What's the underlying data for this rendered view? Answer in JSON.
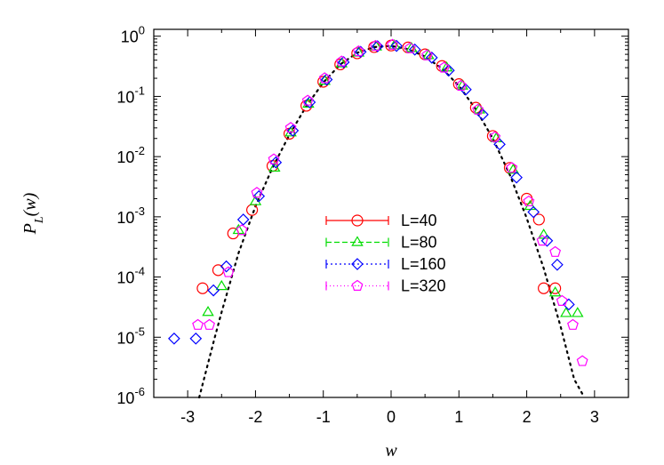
{
  "chart_data": {
    "type": "scatter",
    "title": "",
    "xlabel": "w",
    "ylabel_main": "P",
    "ylabel_sub": "L",
    "ylabel_tail": "(w)",
    "x_scale": "linear",
    "y_scale": "log",
    "xlim": [
      -3.5,
      3.5
    ],
    "ylim": [
      1e-06,
      1.3
    ],
    "x_ticks": [
      -3,
      -2,
      -1,
      0,
      1,
      2,
      3
    ],
    "x_tick_labels": [
      "-3",
      "-2",
      "-1",
      "0",
      "1",
      "2",
      "3"
    ],
    "y_ticks": [
      {
        "value": 1e-06,
        "base": "10",
        "exp": "-6"
      },
      {
        "value": 1e-05,
        "base": "10",
        "exp": "-5"
      },
      {
        "value": 0.0001,
        "base": "10",
        "exp": "-4"
      },
      {
        "value": 0.001,
        "base": "10",
        "exp": "-3"
      },
      {
        "value": 0.01,
        "base": "10",
        "exp": "-2"
      },
      {
        "value": 0.1,
        "base": "10",
        "exp": "-1"
      },
      {
        "value": 1,
        "base": "10",
        "exp": "0"
      }
    ],
    "legend_position": "center",
    "grid": false,
    "series": [
      {
        "name": "L=40",
        "marker": "circle",
        "color": "#ff0000",
        "points": [
          [
            -2.78,
            6.5e-05
          ],
          [
            -2.55,
            0.00013
          ],
          [
            -2.33,
            0.00053
          ],
          [
            -2.05,
            0.0013
          ],
          [
            -1.75,
            0.007
          ],
          [
            -1.5,
            0.024
          ],
          [
            -1.25,
            0.07
          ],
          [
            -1.0,
            0.175
          ],
          [
            -0.75,
            0.34
          ],
          [
            -0.5,
            0.52
          ],
          [
            -0.25,
            0.66
          ],
          [
            0.0,
            0.7
          ],
          [
            0.25,
            0.65
          ],
          [
            0.5,
            0.5
          ],
          [
            0.75,
            0.32
          ],
          [
            1.0,
            0.16
          ],
          [
            1.25,
            0.065
          ],
          [
            1.5,
            0.022
          ],
          [
            1.75,
            0.0065
          ],
          [
            2.0,
            0.002
          ],
          [
            2.18,
            0.0009
          ],
          [
            2.25,
            6.5e-05
          ],
          [
            2.42,
            6.5e-05
          ]
        ]
      },
      {
        "name": "L=80",
        "marker": "triangle",
        "color": "#00dd00",
        "points": [
          [
            -2.7,
            2.6e-05
          ],
          [
            -2.5,
            7e-05
          ],
          [
            -2.25,
            0.0006
          ],
          [
            -2.0,
            0.0018
          ],
          [
            -1.72,
            0.0065
          ],
          [
            -1.48,
            0.025
          ],
          [
            -1.22,
            0.075
          ],
          [
            -0.98,
            0.18
          ],
          [
            -0.73,
            0.35
          ],
          [
            -0.48,
            0.53
          ],
          [
            -0.22,
            0.67
          ],
          [
            0.05,
            0.7
          ],
          [
            0.3,
            0.63
          ],
          [
            0.55,
            0.48
          ],
          [
            0.82,
            0.3
          ],
          [
            1.05,
            0.15
          ],
          [
            1.3,
            0.06
          ],
          [
            1.55,
            0.02
          ],
          [
            1.8,
            0.006
          ],
          [
            2.05,
            0.0015
          ],
          [
            2.25,
            0.0005
          ],
          [
            2.42,
            5.5e-05
          ],
          [
            2.58,
            2.5e-05
          ],
          [
            2.75,
            2.5e-05
          ]
        ]
      },
      {
        "name": "L=160",
        "marker": "diamond",
        "color": "#0000ff",
        "points": [
          [
            -3.2,
            9.5e-06
          ],
          [
            -2.88,
            9.5e-06
          ],
          [
            -2.62,
            6e-05
          ],
          [
            -2.43,
            0.00015
          ],
          [
            -2.18,
            0.0009
          ],
          [
            -1.95,
            0.0022
          ],
          [
            -1.7,
            0.008
          ],
          [
            -1.45,
            0.027
          ],
          [
            -1.2,
            0.08
          ],
          [
            -0.95,
            0.19
          ],
          [
            -0.7,
            0.37
          ],
          [
            -0.45,
            0.55
          ],
          [
            -0.2,
            0.68
          ],
          [
            0.08,
            0.69
          ],
          [
            0.35,
            0.6
          ],
          [
            0.6,
            0.44
          ],
          [
            0.85,
            0.27
          ],
          [
            1.1,
            0.13
          ],
          [
            1.35,
            0.05
          ],
          [
            1.6,
            0.016
          ],
          [
            1.85,
            0.0045
          ],
          [
            2.1,
            0.0012
          ],
          [
            2.3,
            0.0004
          ],
          [
            2.45,
            0.00016
          ],
          [
            2.62,
            3.5e-05
          ]
        ]
      },
      {
        "name": "L=320",
        "marker": "pentagon",
        "color": "#ff00ff",
        "points": [
          [
            -2.85,
            1.6e-05
          ],
          [
            -2.68,
            1.6e-05
          ],
          [
            -2.4,
            0.00012
          ],
          [
            -2.2,
            0.0006
          ],
          [
            -1.98,
            0.0025
          ],
          [
            -1.73,
            0.009
          ],
          [
            -1.48,
            0.03
          ],
          [
            -1.23,
            0.085
          ],
          [
            -0.98,
            0.2
          ],
          [
            -0.73,
            0.38
          ],
          [
            -0.48,
            0.56
          ],
          [
            -0.23,
            0.69
          ],
          [
            0.02,
            0.72
          ],
          [
            0.28,
            0.63
          ],
          [
            0.53,
            0.48
          ],
          [
            0.78,
            0.3
          ],
          [
            1.03,
            0.15
          ],
          [
            1.28,
            0.06
          ],
          [
            1.53,
            0.021
          ],
          [
            1.78,
            0.0065
          ],
          [
            2.03,
            0.0018
          ],
          [
            2.23,
            0.0004
          ],
          [
            2.42,
            0.00026
          ],
          [
            2.52,
            4e-05
          ],
          [
            2.68,
            1.6e-05
          ],
          [
            2.82,
            4e-06
          ]
        ]
      }
    ],
    "reference_curve": {
      "style": "dotted",
      "color": "#000000",
      "points": [
        [
          -2.83,
          1e-06
        ],
        [
          -2.6,
          1e-05
        ],
        [
          -2.5,
          2.6e-05
        ],
        [
          -2.25,
          0.00025
        ],
        [
          -2.0,
          0.0015
        ],
        [
          -1.75,
          0.0065
        ],
        [
          -1.5,
          0.023
        ],
        [
          -1.25,
          0.069
        ],
        [
          -1.0,
          0.17
        ],
        [
          -0.75,
          0.34
        ],
        [
          -0.5,
          0.53
        ],
        [
          -0.25,
          0.66
        ],
        [
          0.0,
          0.69
        ],
        [
          0.25,
          0.61
        ],
        [
          0.5,
          0.46
        ],
        [
          0.75,
          0.29
        ],
        [
          1.0,
          0.15
        ],
        [
          1.25,
          0.061
        ],
        [
          1.5,
          0.02
        ],
        [
          1.75,
          0.005
        ],
        [
          2.0,
          0.00095
        ],
        [
          2.25,
          0.00014
        ],
        [
          2.5,
          1.5e-05
        ],
        [
          2.7,
          2e-06
        ],
        [
          2.85,
          1e-06
        ]
      ]
    }
  }
}
